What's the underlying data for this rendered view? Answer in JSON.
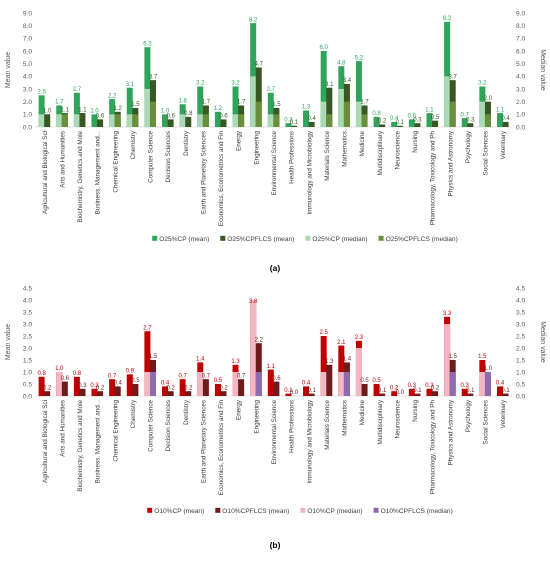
{
  "chart_data": [
    {
      "type": "bar",
      "panel_label": "(a)",
      "ylabel": "Mean value",
      "y2label": "Median value",
      "ylim": [
        0,
        9
      ],
      "y2lim": [
        0,
        9
      ],
      "ytick_step": 1,
      "grid": false,
      "legend": "bottom",
      "categories": [
        "Agricultural and Biological Sci",
        "Arts and Humanities",
        "Biochemistry, Genetics and Mole",
        "Business, Management and...",
        "Chemical Engineering",
        "Chemistry",
        "Computer Science",
        "Decision Sciences",
        "Dentistry",
        "Earth and Planetary Sciences",
        "Economics, Econometrics and Fin",
        "Energy",
        "Engineering",
        "Environmental Science",
        "Health Professions",
        "Immunology and Microbiology",
        "Materials Science",
        "Mathematics",
        "Medicine",
        "Multidisciplinary",
        "Neuroscience",
        "Nursing",
        "Pharmacology, Toxicology and Ph",
        "Physics and Astronomy",
        "Psychology",
        "Social Sciences",
        "Veterinary"
      ],
      "mean_series": [
        {
          "name": "O25%CP (mean)",
          "color": "#2ea55a",
          "values": [
            2.5,
            1.7,
            2.7,
            1.0,
            2.2,
            3.1,
            6.3,
            1.0,
            1.8,
            3.2,
            1.2,
            3.2,
            8.2,
            2.7,
            0.3,
            1.3,
            6.0,
            4.8,
            5.2,
            0.8,
            0.4,
            0.6,
            1.1,
            8.3,
            0.7,
            3.2,
            1.1
          ]
        },
        {
          "name": "O25%CPFLCS (mean)",
          "color": "#385723",
          "values": [
            1.0,
            1.1,
            1.1,
            0.6,
            1.2,
            1.5,
            3.7,
            0.6,
            0.8,
            1.7,
            0.6,
            1.7,
            4.7,
            1.5,
            0.1,
            0.4,
            3.1,
            3.4,
            1.7,
            0.2,
            0.1,
            0.3,
            0.5,
            3.7,
            0.3,
            2.0,
            0.4
          ]
        }
      ],
      "median_series": [
        {
          "name": "O25%CP (median)",
          "color": "#a9d9b5",
          "values": [
            1,
            1,
            1,
            0,
            1,
            1,
            3,
            0,
            1,
            1,
            0,
            1,
            4,
            1,
            0,
            0,
            2,
            3,
            2,
            0,
            0,
            0,
            0,
            4,
            0,
            2,
            0
          ]
        },
        {
          "name": "O25%CPFLCS (median)",
          "color": "#6a8f3a",
          "values": [
            0,
            1,
            0,
            0,
            1,
            1,
            2,
            0,
            0,
            1,
            0,
            1,
            2,
            1,
            0,
            0,
            1,
            2,
            1,
            0,
            0,
            0,
            0,
            2,
            0,
            1,
            0
          ]
        }
      ]
    },
    {
      "type": "bar",
      "panel_label": "(b)",
      "ylabel": "Mean value",
      "y2label": "Median value",
      "ylim": [
        0,
        4.5
      ],
      "y2lim": [
        0,
        4.5
      ],
      "ytick_step": 0.5,
      "grid": false,
      "legend": "bottom",
      "categories": [
        "Agricultural and Biological Sci",
        "Arts and Humanities",
        "Biochemistry, Genetics and Mole",
        "Business, Management and...",
        "Chemical Engineering",
        "Chemistry",
        "Computer Science",
        "Decision Sciences",
        "Dentistry",
        "Earth and Planetary Sciences",
        "Economics, Econometrics and Fin",
        "Energy",
        "Engineering",
        "Environmental Science",
        "Health Professions",
        "Immunology and Microbiology",
        "Materials Science",
        "Mathematics",
        "Medicine",
        "Multidisciplinary",
        "Neuroscience",
        "Nursing",
        "Pharmacology, Toxicology and Ph",
        "Physics and Astronomy",
        "Psychology",
        "Social Sciences",
        "Veterinary"
      ],
      "mean_series": [
        {
          "name": "O10%CP (mean)",
          "color": "#c00000",
          "values": [
            0.8,
            1.0,
            0.8,
            0.3,
            0.7,
            0.9,
            2.7,
            0.4,
            0.7,
            1.4,
            0.5,
            1.3,
            3.8,
            1.1,
            0.1,
            0.4,
            2.5,
            2.1,
            2.3,
            0.5,
            0.2,
            0.3,
            0.3,
            3.3,
            0.3,
            1.5,
            0.4
          ]
        },
        {
          "name": "O10%CPFLCS (mean)",
          "color": "#6d1b1b",
          "values": [
            0.2,
            0.6,
            0.3,
            0.2,
            0.4,
            0.5,
            1.5,
            0.2,
            0.2,
            0.7,
            0.2,
            0.7,
            2.2,
            0.6,
            0.0,
            0.1,
            1.3,
            1.4,
            0.5,
            0.1,
            0.0,
            0.1,
            0.2,
            1.5,
            0.1,
            1.0,
            0.1
          ]
        }
      ],
      "median_series": [
        {
          "name": "O10%CP (median)",
          "color": "#f4b6c2",
          "values": [
            0,
            1,
            0,
            0,
            0,
            0,
            1,
            0,
            0,
            1,
            0,
            1,
            4,
            0,
            0,
            0,
            1,
            1,
            2,
            0,
            0,
            0,
            0,
            3,
            0,
            1,
            0
          ]
        },
        {
          "name": "O10%CPFLCS (median)",
          "color": "#8e6bb0",
          "values": [
            0,
            0,
            0,
            0,
            0,
            0,
            1,
            0,
            0,
            0,
            0,
            0,
            1,
            0,
            0,
            0,
            0,
            1,
            0,
            0,
            0,
            0,
            0,
            1,
            0,
            1,
            0
          ]
        }
      ]
    }
  ]
}
